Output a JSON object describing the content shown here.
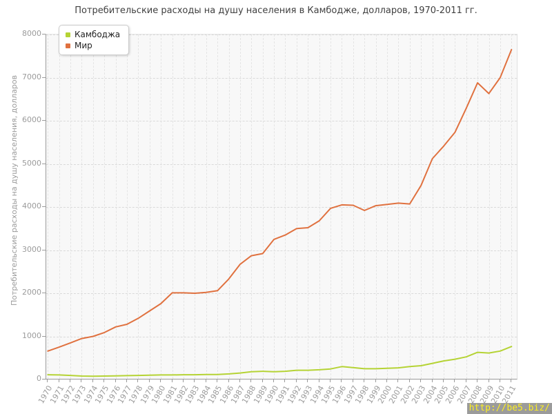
{
  "title": "Потребительские расходы на душу населения в Камбодже, долларов, 1970-2011 гг.",
  "watermark": "http://be5.biz/",
  "legend": {
    "items": [
      {
        "label": "Камбоджа",
        "color": "#b5d334"
      },
      {
        "label": "Мир",
        "color": "#e0713f"
      }
    ]
  },
  "colors": {
    "cambodia_line": "#b5d334",
    "world_line": "#e0713f",
    "plot_background": "#f8f8f8",
    "axis_label": "#9b9b9b",
    "watermark_bg": "#9b9b9b",
    "watermark_text": "#fcee21"
  },
  "chart_data": {
    "type": "line",
    "title": "Потребительские расходы на душу населения в Камбодже, долларов, 1970-2011 гг.",
    "xlabel": "",
    "ylabel": "Потребительские расходы на душу населения, долларов",
    "ylim": [
      0,
      8000
    ],
    "ytick_step": 1000,
    "grid": true,
    "legend_position": "top-left",
    "x": [
      1970,
      1971,
      1972,
      1973,
      1974,
      1975,
      1976,
      1977,
      1978,
      1979,
      1980,
      1981,
      1982,
      1983,
      1984,
      1985,
      1986,
      1987,
      1988,
      1989,
      1990,
      1991,
      1992,
      1993,
      1994,
      1995,
      1996,
      1997,
      1998,
      1999,
      2000,
      2001,
      2002,
      2003,
      2004,
      2005,
      2006,
      2007,
      2008,
      2009,
      2010,
      2011
    ],
    "series": [
      {
        "name": "Камбоджа",
        "color": "#b5d334",
        "values": [
          110,
          105,
          95,
          80,
          75,
          80,
          85,
          90,
          95,
          100,
          105,
          105,
          110,
          110,
          115,
          115,
          130,
          150,
          180,
          190,
          180,
          190,
          215,
          215,
          225,
          245,
          300,
          275,
          250,
          250,
          260,
          270,
          300,
          320,
          375,
          430,
          470,
          525,
          630,
          615,
          660,
          765
        ]
      },
      {
        "name": "Мир",
        "color": "#e0713f",
        "values": [
          660,
          750,
          850,
          950,
          1000,
          1090,
          1220,
          1280,
          1420,
          1590,
          1760,
          2010,
          2010,
          2000,
          2020,
          2060,
          2330,
          2670,
          2870,
          2920,
          3250,
          3350,
          3500,
          3520,
          3680,
          3970,
          4050,
          4040,
          3920,
          4030,
          4060,
          4090,
          4070,
          4500,
          5120,
          5410,
          5730,
          6290,
          6880,
          6630,
          7000,
          7650
        ]
      }
    ]
  }
}
